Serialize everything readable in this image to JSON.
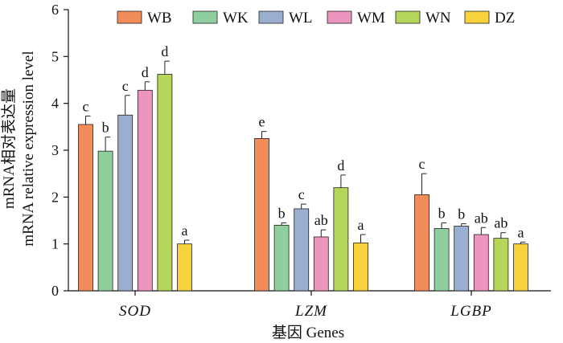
{
  "chart_data": {
    "type": "bar",
    "title": "",
    "ylabel_cn": "mRNA相对表达量",
    "ylabel_en": "mRNA relative expression level",
    "xlabel": "基因 Genes",
    "ylim": [
      0,
      6
    ],
    "yticks": [
      "0",
      "1",
      "2",
      "3",
      "4",
      "5",
      "6"
    ],
    "legend_position": "top",
    "categories": [
      "SOD",
      "LZM",
      "LGBP"
    ],
    "series": [
      {
        "name": "WB",
        "color": "#f28c5b",
        "values": [
          3.55,
          3.25,
          2.05
        ],
        "errors": [
          0.18,
          0.15,
          0.45
        ],
        "labels": [
          "c",
          "e",
          "c"
        ]
      },
      {
        "name": "WK",
        "color": "#8fcf9e",
        "values": [
          2.98,
          1.4,
          1.33
        ],
        "errors": [
          0.3,
          0.05,
          0.12
        ],
        "labels": [
          "b",
          "b",
          "b"
        ]
      },
      {
        "name": "WL",
        "color": "#9aaed0",
        "values": [
          3.75,
          1.75,
          1.38
        ],
        "errors": [
          0.42,
          0.1,
          0.05
        ],
        "labels": [
          "c",
          "c",
          "b"
        ]
      },
      {
        "name": "WM",
        "color": "#ec96bf",
        "values": [
          4.28,
          1.15,
          1.2
        ],
        "errors": [
          0.18,
          0.15,
          0.15
        ],
        "labels": [
          "d",
          "ab",
          "ab"
        ]
      },
      {
        "name": "WN",
        "color": "#b5d65a",
        "values": [
          4.62,
          2.2,
          1.12
        ],
        "errors": [
          0.28,
          0.27,
          0.12
        ],
        "labels": [
          "d",
          "d",
          "ab"
        ]
      },
      {
        "name": "DZ",
        "color": "#f7d23c",
        "values": [
          1.0,
          1.02,
          1.0
        ],
        "errors": [
          0.08,
          0.18,
          0.04
        ],
        "labels": [
          "a",
          "a",
          "a"
        ]
      }
    ]
  }
}
